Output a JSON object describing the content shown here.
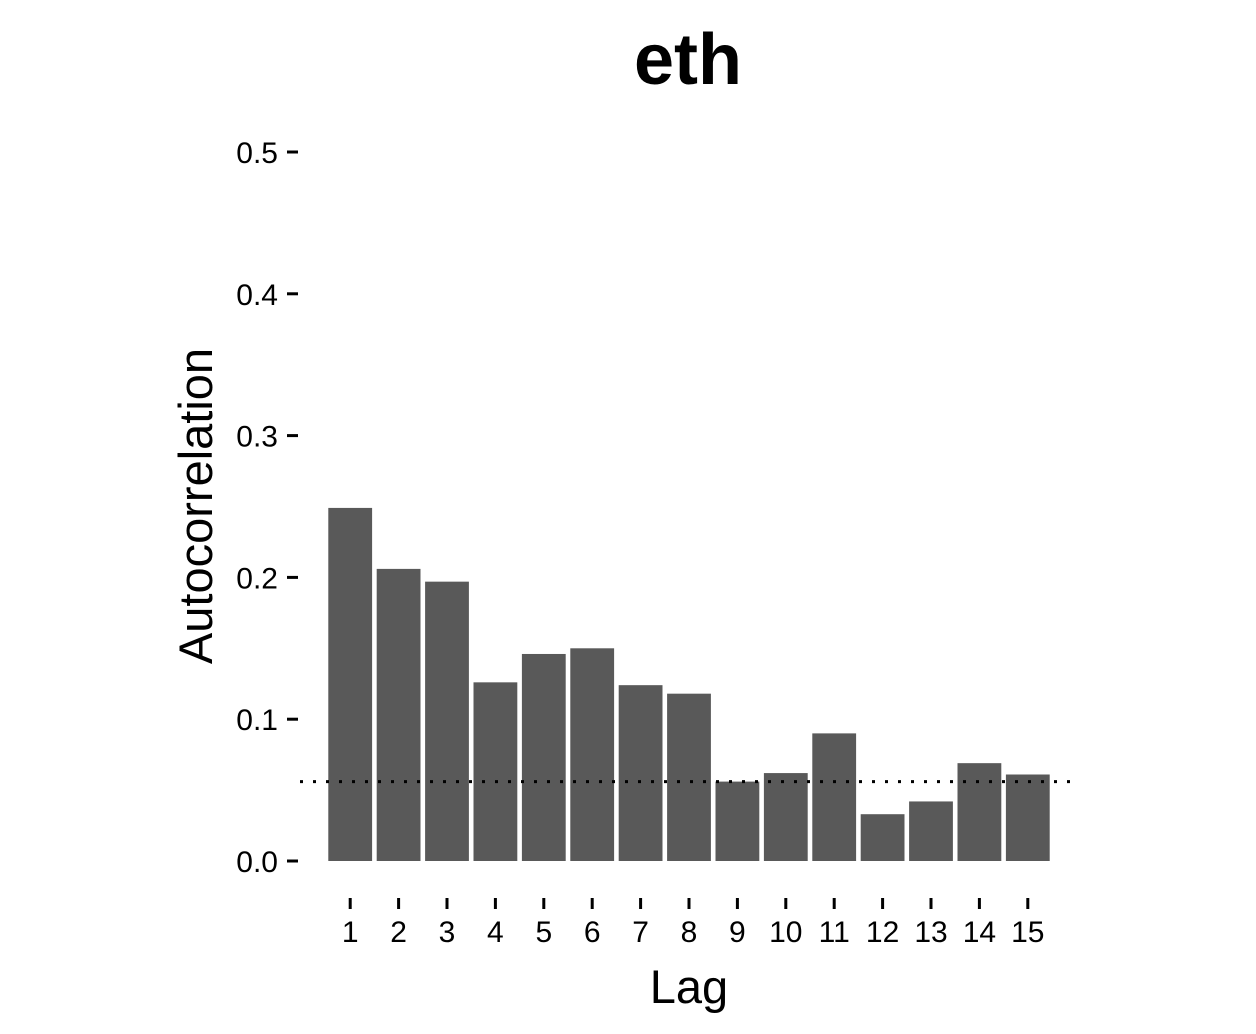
{
  "chart_data": {
    "type": "bar",
    "title": "eth",
    "xlabel": "Lag",
    "ylabel": "Autocorrelation",
    "categories": [
      "1",
      "2",
      "3",
      "4",
      "5",
      "6",
      "7",
      "8",
      "9",
      "10",
      "11",
      "12",
      "13",
      "14",
      "15"
    ],
    "values": [
      0.249,
      0.206,
      0.197,
      0.126,
      0.146,
      0.15,
      0.124,
      0.118,
      0.056,
      0.062,
      0.09,
      0.033,
      0.042,
      0.069,
      0.061
    ],
    "ylim": [
      0,
      0.5
    ],
    "yticks": [
      "0.0",
      "0.1",
      "0.2",
      "0.3",
      "0.4",
      "0.5"
    ],
    "threshold": 0.056,
    "threshold_style": "dotted",
    "bar_color": "#595959",
    "grid": false,
    "legend": "none"
  }
}
